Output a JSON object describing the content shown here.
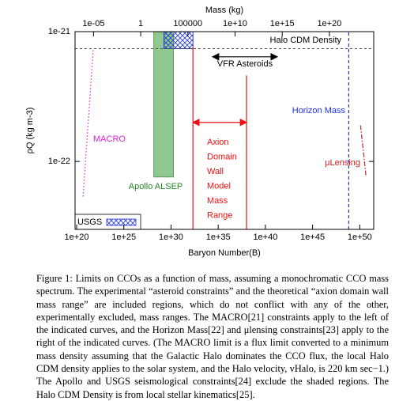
{
  "chart_data": {
    "type": "regions",
    "xlabel": "Baryon Number(B)",
    "x2label": "Mass (kg)",
    "ylabel": "ρQ (kg m-3)",
    "log_x": true,
    "log_y": true,
    "xlim": [
      6.8e+19,
      3e+51
    ],
    "xticks": [
      {
        "value": 1e+20,
        "label": "1e+20"
      },
      {
        "value": 1e+25,
        "label": "1e+25"
      },
      {
        "value": 1e+30,
        "label": "1e+30"
      },
      {
        "value": 1e+35,
        "label": "1e+35"
      },
      {
        "value": 1e+40,
        "label": "1e+40"
      },
      {
        "value": 1e+45,
        "label": "1e+45"
      },
      {
        "value": 1e+50,
        "label": "1e+50"
      }
    ],
    "x2lim": [
      1.1e-07,
      5e+24
    ],
    "x2ticks": [
      {
        "value": 1e-05,
        "label": "1e-05"
      },
      1,
      100000,
      {
        "value": 10000000000.0,
        "label": "1e+10"
      },
      {
        "value": 1000000000000000.0,
        "label": "1e+15"
      },
      {
        "value": 1e+20,
        "label": "1e+20"
      }
    ],
    "ylim": [
      3e-23,
      1e-21
    ],
    "yticks": [
      {
        "value": 1e-22,
        "label": "1e-22"
      },
      {
        "value": 1e-21,
        "label": "1e-21"
      }
    ],
    "hline": {
      "name": "Halo CDM Density",
      "y": 7.4e-22,
      "color": "#555555"
    },
    "regions": [
      {
        "name": "Apollo ALSEP",
        "color": "#8fc98f",
        "hatch": false,
        "x": [
          1.5e+28,
          1.8e+30
        ],
        "y": [
          7.6e-23,
          1e-21
        ]
      },
      {
        "name": "USGS",
        "color": "#2233dd",
        "hatch": true,
        "x": [
          1.8e+29,
          2.1e+32
        ],
        "y": [
          7.4e-22,
          1e-21
        ]
      }
    ],
    "lines": [
      {
        "name": "MACRO",
        "color": "#e020e0",
        "style": "dotted",
        "x": [
          5.6e+21,
          4.7e+20
        ],
        "y": [
          7.2e-22,
          5.2e-23
        ]
      },
      {
        "name": "Horizon Mass",
        "color": "#2233dd",
        "style": "dashed",
        "x": [
          6.8e+48,
          6.8e+48
        ],
        "y": [
          3e-23,
          1e-21
        ]
      },
      {
        "name": "μLensing",
        "color": "#cc2222",
        "style": "dashdot",
        "x": [
          1.2e+50,
          4.7e+50
        ],
        "y": [
          1.9e-22,
          7.6e-23
        ]
      }
    ],
    "vfr": {
      "name": "VFR Asteroids",
      "color": "#000000",
      "x": [
        2.5e+34,
        1.8e+41
      ],
      "y": 6.4e-22
    },
    "axion": {
      "label_lines": [
        "Axion",
        "Domain",
        "Wall",
        "Model",
        "Mass",
        "Range"
      ],
      "color": "#ee1111",
      "x": [
        2.1e+32,
        1e+38
      ],
      "y_top": [
        7.6e-22,
        4.6e-22
      ],
      "arrow_y": 2e-22
    }
  },
  "caption": "Figure 1: Limits on CCOs as a function of mass, assuming a monochromatic CCO mass spectrum. The experimental “asteroid constraints” and the theoretical “axion domain wall mass range” are included regions, which do not conflict with any of the other, experimentally excluded, mass ranges. The MACRO[21] constraints apply to the left of the indicated curves, and the Horizon Mass[22] and μlensing constraints[23] apply to the right of the indicated curves. (The MACRO limit is a flux limit converted to a minimum mass density assuming that the Galactic Halo dominates the CCO flux, the local Halo CDM density applies to the solar system, and the Halo velocity, vHalo, is 220 km sec−1.) The Apollo and USGS seismological constraints[24] exclude the shaded regions. The Halo CDM Density is from local stellar kinematics[25]."
}
